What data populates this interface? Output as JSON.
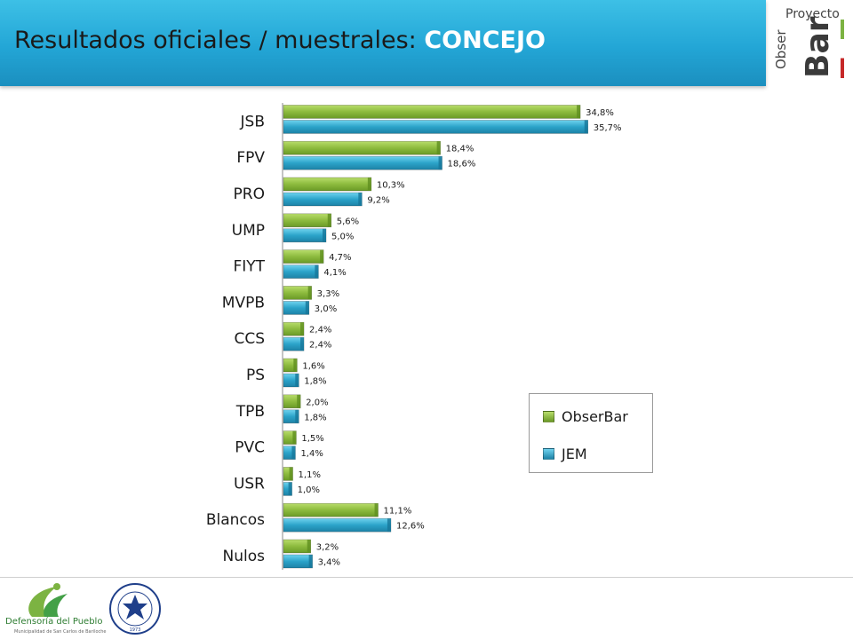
{
  "header": {
    "title": "Resultados  oficiales / muestrales:",
    "title_accent": "CONCEJO"
  },
  "project_logo": {
    "line1": "Proyecto",
    "line2": "Obser",
    "line3": "Bar"
  },
  "chart_data": {
    "type": "bar",
    "orientation": "horizontal",
    "categories": [
      "JSB",
      "FPV",
      "PRO",
      "UMP",
      "FIYT",
      "MVPB",
      "CCS",
      "PS",
      "TPB",
      "PVC",
      "USR",
      "Blancos",
      "Nulos"
    ],
    "series": [
      {
        "name": "ObserBar",
        "values": [
          34.8,
          18.4,
          10.3,
          5.6,
          4.7,
          3.3,
          2.4,
          1.6,
          2.0,
          1.5,
          1.1,
          11.1,
          3.2
        ],
        "labels": [
          "34,8%",
          "18,4%",
          "10,3%",
          "5,6%",
          "4,7%",
          "3,3%",
          "2,4%",
          "1,6%",
          "2,0%",
          "1,5%",
          "1,1%",
          "11,1%",
          "3,2%"
        ],
        "color": "#8dbb3e"
      },
      {
        "name": "JEM",
        "values": [
          35.7,
          18.6,
          9.2,
          5.0,
          4.1,
          3.0,
          2.4,
          1.8,
          1.8,
          1.4,
          1.0,
          12.6,
          3.4
        ],
        "labels": [
          "35,7%",
          "18,6%",
          "9,2%",
          "5,0%",
          "4,1%",
          "3,0%",
          "2,4%",
          "1,8%",
          "1,8%",
          "1,4%",
          "1,0%",
          "12,6%",
          "3,4%"
        ],
        "color": "#2ba3c9"
      }
    ],
    "xlim": [
      0,
      40
    ],
    "grid": false,
    "legend_position": "right"
  },
  "footer": {
    "org_name": "Defensoría del Pueblo",
    "org_sub": "Municipalidad de San Carlos de Bariloche",
    "seal_year": "1973"
  }
}
